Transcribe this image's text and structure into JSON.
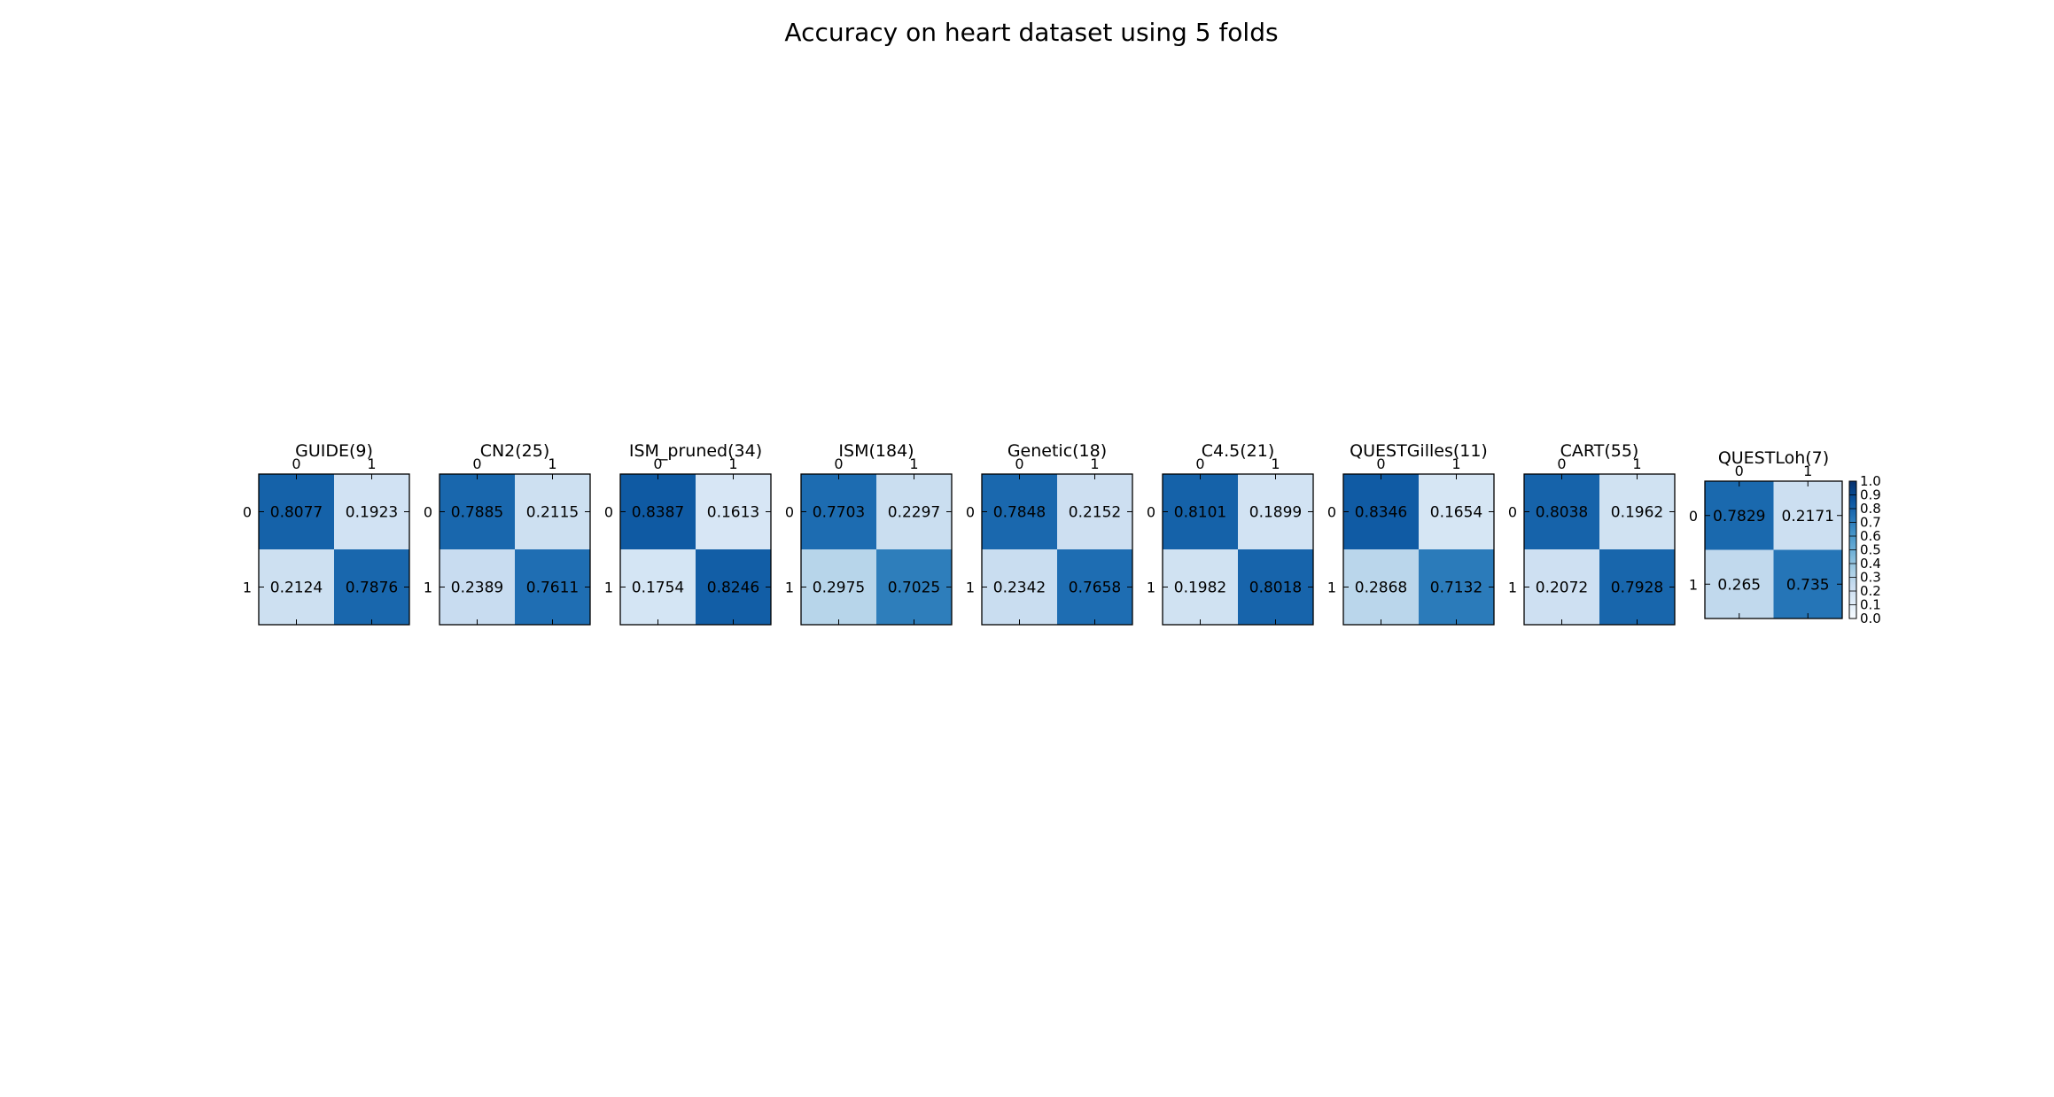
{
  "chart_data": {
    "type": "heatmap",
    "title": "Accuracy on heart dataset using 5 folds",
    "tick_labels": [
      "0",
      "1"
    ],
    "colormap": {
      "name": "Blues",
      "range": [
        0.0,
        1.0
      ],
      "ticks": [
        "0.0",
        "0.1",
        "0.2",
        "0.3",
        "0.4",
        "0.5",
        "0.6",
        "0.7",
        "0.8",
        "0.9",
        "1.0"
      ]
    },
    "matrices": [
      {
        "title": "GUIDE(9)",
        "values": [
          [
            0.8077,
            0.1923
          ],
          [
            0.2124,
            0.7876
          ]
        ],
        "labels": [
          [
            "0.8077",
            "0.1923"
          ],
          [
            "0.2124",
            "0.7876"
          ]
        ]
      },
      {
        "title": "CN2(25)",
        "values": [
          [
            0.7885,
            0.2115
          ],
          [
            0.2389,
            0.7611
          ]
        ],
        "labels": [
          [
            "0.7885",
            "0.2115"
          ],
          [
            "0.2389",
            "0.7611"
          ]
        ]
      },
      {
        "title": "ISM_pruned(34)",
        "values": [
          [
            0.8387,
            0.1613
          ],
          [
            0.1754,
            0.8246
          ]
        ],
        "labels": [
          [
            "0.8387",
            "0.1613"
          ],
          [
            "0.1754",
            "0.8246"
          ]
        ]
      },
      {
        "title": "ISM(184)",
        "values": [
          [
            0.7703,
            0.2297
          ],
          [
            0.2975,
            0.7025
          ]
        ],
        "labels": [
          [
            "0.7703",
            "0.2297"
          ],
          [
            "0.2975",
            "0.7025"
          ]
        ]
      },
      {
        "title": "Genetic(18)",
        "values": [
          [
            0.7848,
            0.2152
          ],
          [
            0.2342,
            0.7658
          ]
        ],
        "labels": [
          [
            "0.7848",
            "0.2152"
          ],
          [
            "0.2342",
            "0.7658"
          ]
        ]
      },
      {
        "title": "C4.5(21)",
        "values": [
          [
            0.8101,
            0.1899
          ],
          [
            0.1982,
            0.8018
          ]
        ],
        "labels": [
          [
            "0.8101",
            "0.1899"
          ],
          [
            "0.1982",
            "0.8018"
          ]
        ]
      },
      {
        "title": "QUESTGilles(11)",
        "values": [
          [
            0.8346,
            0.1654
          ],
          [
            0.2868,
            0.7132
          ]
        ],
        "labels": [
          [
            "0.8346",
            "0.1654"
          ],
          [
            "0.2868",
            "0.7132"
          ]
        ]
      },
      {
        "title": "CART(55)",
        "values": [
          [
            0.8038,
            0.1962
          ],
          [
            0.2072,
            0.7928
          ]
        ],
        "labels": [
          [
            "0.8038",
            "0.1962"
          ],
          [
            "0.2072",
            "0.7928"
          ]
        ]
      },
      {
        "title": "QUESTLoh(7)",
        "values": [
          [
            0.7829,
            0.2171
          ],
          [
            0.265,
            0.735
          ]
        ],
        "labels": [
          [
            "0.7829",
            "0.2171"
          ],
          [
            "0.265",
            "0.735"
          ]
        ]
      }
    ]
  }
}
